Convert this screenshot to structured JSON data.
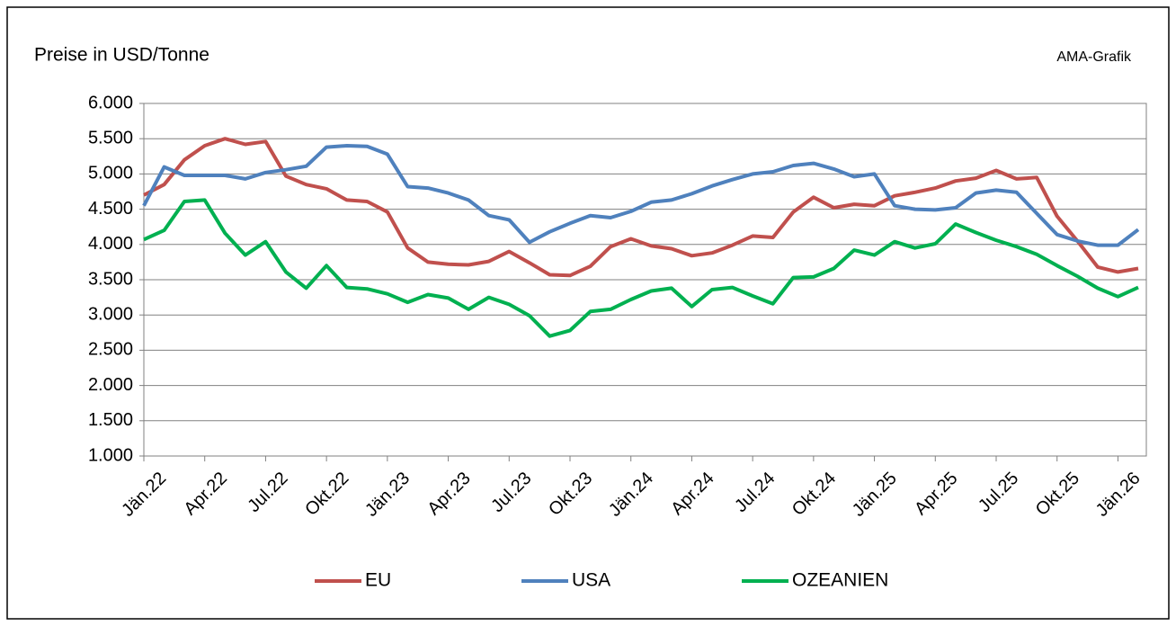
{
  "chart_data": {
    "type": "line",
    "title": "Preise in USD/Tonne",
    "source": "AMA-Grafik",
    "categories": [
      "Jän.22",
      null,
      null,
      "Apr.22",
      null,
      null,
      "Jul.22",
      null,
      null,
      "Okt.22",
      null,
      null,
      "Jän.23",
      null,
      null,
      "Apr.23",
      null,
      null,
      "Jul.23",
      null,
      null,
      "Okt.23",
      null,
      null,
      "Jän.24",
      null,
      null,
      "Apr.24",
      null,
      null,
      "Jul.24",
      null,
      null,
      "Okt.24",
      null,
      null,
      "Jän.25",
      null,
      null,
      "Apr.25",
      null,
      null,
      "Jul.25",
      null,
      null,
      "Okt.25",
      null,
      null,
      "Jän.26",
      null
    ],
    "series": [
      {
        "name": "EU",
        "color": "#c0504d",
        "values": [
          4700,
          4850,
          5200,
          5400,
          5500,
          5420,
          5460,
          4970,
          4850,
          4790,
          4630,
          4610,
          4460,
          3950,
          3750,
          3720,
          3710,
          3760,
          3900,
          3740,
          3570,
          3560,
          3690,
          3970,
          4080,
          3980,
          3940,
          3840,
          3880,
          3990,
          4120,
          4100,
          4460,
          4670,
          4520,
          4570,
          4550,
          4690,
          4740,
          4800,
          4900,
          4940,
          5050,
          4930,
          4950,
          4400,
          4050,
          3680,
          3610,
          3660
        ]
      },
      {
        "name": "USA",
        "color": "#4f81bd",
        "values": [
          4550,
          5100,
          4980,
          4980,
          4980,
          4930,
          5020,
          5060,
          5110,
          5380,
          5400,
          5390,
          5280,
          4820,
          4800,
          4730,
          4630,
          4410,
          4350,
          4030,
          4180,
          4300,
          4410,
          4380,
          4470,
          4600,
          4630,
          4720,
          4830,
          4920,
          5000,
          5030,
          5120,
          5150,
          5070,
          4960,
          5000,
          4550,
          4500,
          4490,
          4520,
          4730,
          4770,
          4740,
          4440,
          4140,
          4050,
          3990,
          3990,
          4210
        ]
      },
      {
        "name": "OZEANIEN",
        "color": "#00b050",
        "values": [
          4070,
          4200,
          4610,
          4630,
          4160,
          3850,
          4040,
          3610,
          3380,
          3700,
          3390,
          3370,
          3300,
          3180,
          3290,
          3240,
          3080,
          3250,
          3150,
          2990,
          2700,
          2780,
          3050,
          3080,
          3220,
          3340,
          3380,
          3120,
          3360,
          3390,
          3270,
          3160,
          3530,
          3540,
          3660,
          3920,
          3850,
          4040,
          3950,
          4010,
          4290,
          4170,
          4060,
          3970,
          3860,
          3700,
          3550,
          3380,
          3260,
          3390
        ]
      }
    ],
    "ylim": [
      1000,
      6000
    ],
    "yticks": [
      {
        "value": 1000,
        "label": "1.000"
      },
      {
        "value": 1500,
        "label": "1.500"
      },
      {
        "value": 2000,
        "label": "2.000"
      },
      {
        "value": 2500,
        "label": "2.500"
      },
      {
        "value": 3000,
        "label": "3.000"
      },
      {
        "value": 3500,
        "label": "3.500"
      },
      {
        "value": 4000,
        "label": "4.000"
      },
      {
        "value": 4500,
        "label": "4.500"
      },
      {
        "value": 5000,
        "label": "5.000"
      },
      {
        "value": 5500,
        "label": "5.500"
      },
      {
        "value": 6000,
        "label": "6.000"
      }
    ],
    "grid": true,
    "legend": "bottom"
  }
}
